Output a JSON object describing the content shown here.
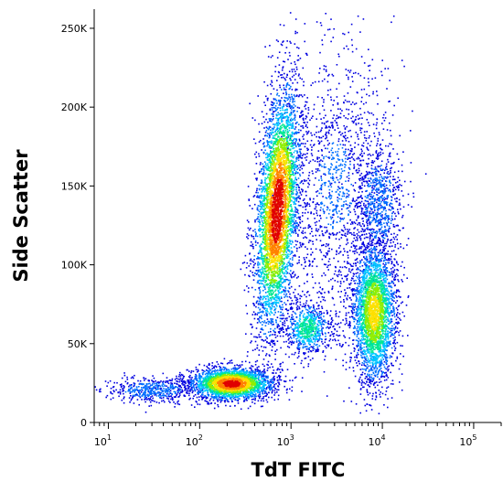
{
  "chart_data": {
    "type": "scatter",
    "title": "",
    "xlabel": "TdT FITC",
    "ylabel": "Side Scatter",
    "x_scale": "log",
    "xlim": [
      7,
      200000
    ],
    "ylim": [
      0,
      262144
    ],
    "grid": false,
    "legend": "none",
    "x_ticks": [
      {
        "value": 10,
        "base": "10",
        "exp": "1"
      },
      {
        "value": 100,
        "base": "10",
        "exp": "2"
      },
      {
        "value": 1000,
        "base": "10",
        "exp": "3"
      },
      {
        "value": 10000,
        "base": "10",
        "exp": "4"
      },
      {
        "value": 100000,
        "base": "10",
        "exp": "5"
      }
    ],
    "y_ticks": [
      {
        "value": 0,
        "label": "0"
      },
      {
        "value": 50000,
        "label": "50K"
      },
      {
        "value": 100000,
        "label": "100K"
      },
      {
        "value": 150000,
        "label": "150K"
      },
      {
        "value": 200000,
        "label": "200K"
      },
      {
        "value": 250000,
        "label": "250K"
      }
    ],
    "density_colors": [
      "#0000e0",
      "#0070ff",
      "#00c8ff",
      "#00e890",
      "#90ee00",
      "#ffe000",
      "#ff8000",
      "#e00000"
    ],
    "populations": [
      {
        "x_center": 220,
        "y_center": 25000,
        "x_spread_decades": 0.22,
        "y_sd": 5000,
        "events": 2600,
        "peak_density": 0.95
      },
      {
        "x_center": 30,
        "y_center": 21000,
        "x_spread_decades": 0.25,
        "y_sd": 4000,
        "events": 500,
        "peak_density": 0.25
      },
      {
        "x_center": 700,
        "y_center": 135000,
        "x_spread_decades": 0.11,
        "y_sd": 38000,
        "events": 4500,
        "peak_density": 1.0,
        "tilt_decades_per_100k": 0.12
      },
      {
        "x_center": 1500,
        "y_center": 60000,
        "x_spread_decades": 0.12,
        "y_sd": 8000,
        "events": 700,
        "peak_density": 0.5
      },
      {
        "x_center": 8000,
        "y_center": 70000,
        "x_spread_decades": 0.12,
        "y_sd": 22000,
        "events": 3000,
        "peak_density": 0.7
      },
      {
        "x_center": 9000,
        "y_center": 140000,
        "x_spread_decades": 0.13,
        "y_sd": 20000,
        "events": 700,
        "peak_density": 0.25
      },
      {
        "x_center": 3000,
        "y_center": 150000,
        "x_spread_decades": 0.3,
        "y_sd": 45000,
        "events": 1400,
        "peak_density": 0.15
      }
    ]
  }
}
